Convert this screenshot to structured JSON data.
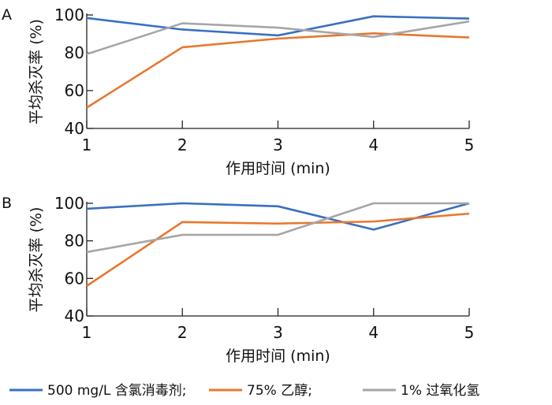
{
  "chart_data": [
    {
      "type": "line",
      "panel_label": "A",
      "xlabel": "作用时间 (min)",
      "ylabel": "平均杀灭率 (%)",
      "x": [
        1,
        2,
        3,
        4,
        5
      ],
      "xlim": [
        1,
        5
      ],
      "ylim": [
        40,
        100
      ],
      "yticks": [
        40,
        60,
        80,
        100
      ],
      "grid": false,
      "series": [
        {
          "name": "500 mg/L 含氯消毒剂;",
          "color": "#3a6fc0",
          "values": [
            98.4,
            92.3,
            89.2,
            99.3,
            98.1
          ]
        },
        {
          "name": "75% 乙醇;",
          "color": "#e8772e",
          "values": [
            51.0,
            82.9,
            87.5,
            90.3,
            88.1
          ]
        },
        {
          "name": "1% 过氧化氢",
          "color": "#a6a6a6",
          "values": [
            79.3,
            95.6,
            93.3,
            88.4,
            96.6
          ]
        }
      ]
    },
    {
      "type": "line",
      "panel_label": "B",
      "xlabel": "作用时间 (min)",
      "ylabel": "平均杀灭率 (%)",
      "x": [
        1,
        2,
        3,
        4,
        5
      ],
      "xlim": [
        1,
        5
      ],
      "ylim": [
        40,
        100
      ],
      "yticks": [
        40,
        60,
        80,
        100
      ],
      "grid": false,
      "series": [
        {
          "name": "500 mg/L 含氯消毒剂;",
          "color": "#3a6fc0",
          "values": [
            97.1,
            100,
            98.4,
            86.0,
            100
          ]
        },
        {
          "name": "75% 乙醇;",
          "color": "#e8772e",
          "values": [
            56.0,
            90.0,
            89.2,
            90.3,
            94.5
          ]
        },
        {
          "name": "1% 过氧化氢",
          "color": "#a6a6a6",
          "values": [
            74.0,
            83.2,
            83.2,
            100,
            100
          ]
        }
      ]
    }
  ],
  "legend": {
    "position": "bottom",
    "items": [
      {
        "label": "500 mg/L 含氯消毒剂;",
        "color": "#3a6fc0"
      },
      {
        "label": "75% 乙醇;",
        "color": "#e8772e"
      },
      {
        "label": "1% 过氧化氢",
        "color": "#a6a6a6"
      }
    ]
  }
}
